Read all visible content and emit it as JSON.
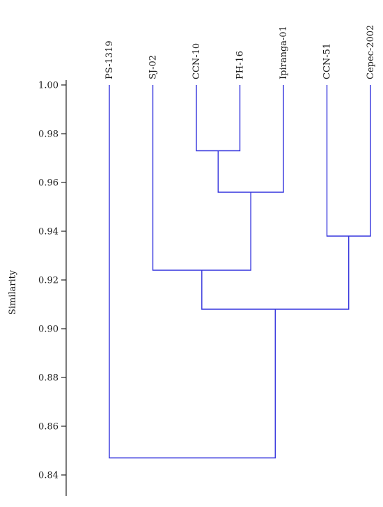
{
  "chart_data": {
    "type": "dendrogram",
    "ylabel": "Similarity",
    "ylim": [
      0.836,
      1.0
    ],
    "yticks": [
      "1.00",
      "0.98",
      "0.96",
      "0.94",
      "0.92",
      "0.90",
      "0.88",
      "0.86",
      "0.84"
    ],
    "leaves": [
      "PS-1319",
      "SJ-02",
      "CCN-10",
      "PH-16",
      "Ipiranga-01",
      "CCN-51",
      "Cepec-2002"
    ],
    "merges": [
      {
        "a": "CCN-10",
        "b": "PH-16",
        "similarity": 0.973
      },
      {
        "a": "m0",
        "b": "Ipiranga-01",
        "similarity": 0.956
      },
      {
        "a": "CCN-51",
        "b": "Cepec-2002",
        "similarity": 0.938
      },
      {
        "a": "SJ-02",
        "b": "m1",
        "similarity": 0.924
      },
      {
        "a": "m3",
        "b": "m2",
        "similarity": 0.908
      },
      {
        "a": "PS-1319",
        "b": "m4",
        "similarity": 0.847
      }
    ],
    "line_color": "#3333dd"
  }
}
